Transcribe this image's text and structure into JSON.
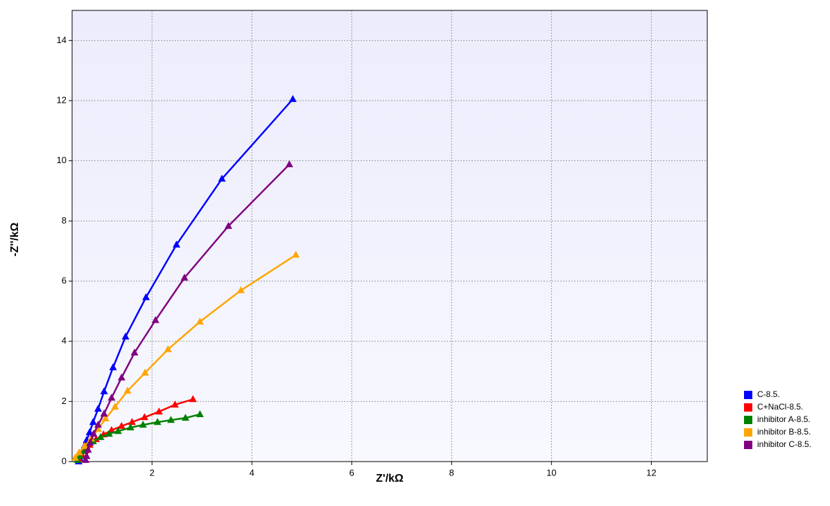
{
  "chart_data": {
    "type": "line",
    "xlabel": "Z'/kΩ",
    "ylabel": "-Z''/kΩ",
    "xlim": [
      0.4,
      13.12
    ],
    "ylim": [
      0,
      15
    ],
    "xticks": [
      2,
      4,
      6,
      8,
      10,
      12
    ],
    "yticks": [
      0,
      2,
      4,
      6,
      8,
      10,
      12,
      14
    ],
    "grid": true,
    "legend": "right",
    "series": [
      {
        "name": "C-8.5.",
        "color": "#0000ff",
        "x": [
          0.53,
          0.56,
          0.58,
          0.61,
          0.65,
          0.69,
          0.75,
          0.82,
          0.92,
          1.04,
          1.22,
          1.47,
          1.88,
          2.49,
          3.4,
          4.82
        ],
        "values": [
          0,
          0.09,
          0.21,
          0.35,
          0.53,
          0.71,
          0.97,
          1.31,
          1.75,
          2.33,
          3.13,
          4.15,
          5.46,
          7.21,
          9.4,
          12.05
        ]
      },
      {
        "name": "C+NaCl-8.5.",
        "color": "#ff0000",
        "x": [
          0.54,
          0.6,
          0.67,
          0.75,
          0.88,
          1.03,
          1.19,
          1.39,
          1.6,
          1.85,
          2.14,
          2.46,
          2.82
        ],
        "values": [
          0.07,
          0.21,
          0.37,
          0.55,
          0.74,
          0.9,
          1.04,
          1.18,
          1.31,
          1.47,
          1.66,
          1.89,
          2.07
        ]
      },
      {
        "name": "inhibitor A-8.5.",
        "color": "#008000",
        "x": [
          0.51,
          0.56,
          0.61,
          0.69,
          0.82,
          0.97,
          1.14,
          1.32,
          1.57,
          1.82,
          2.11,
          2.38,
          2.67,
          2.96
        ],
        "values": [
          0.05,
          0.18,
          0.35,
          0.51,
          0.67,
          0.81,
          0.92,
          1.01,
          1.13,
          1.22,
          1.31,
          1.38,
          1.45,
          1.57
        ]
      },
      {
        "name": "inhibitor B-8.5.",
        "color": "#ffa500",
        "x": [
          0.46,
          0.54,
          0.65,
          0.78,
          0.92,
          1.07,
          1.26,
          1.51,
          1.86,
          2.32,
          2.96,
          3.78,
          4.88
        ],
        "values": [
          0.12,
          0.3,
          0.51,
          0.76,
          1.08,
          1.43,
          1.82,
          2.35,
          2.95,
          3.73,
          4.65,
          5.69,
          6.87
        ]
      },
      {
        "name": "inhibitor C-8.5.",
        "color": "#800080",
        "x": [
          0.67,
          0.69,
          0.72,
          0.76,
          0.83,
          0.92,
          1.04,
          1.19,
          1.39,
          1.65,
          2.07,
          2.65,
          3.53,
          4.75
        ],
        "values": [
          0.05,
          0.18,
          0.39,
          0.62,
          0.92,
          1.22,
          1.59,
          2.12,
          2.79,
          3.62,
          4.7,
          6.11,
          7.83,
          9.88
        ]
      }
    ]
  }
}
